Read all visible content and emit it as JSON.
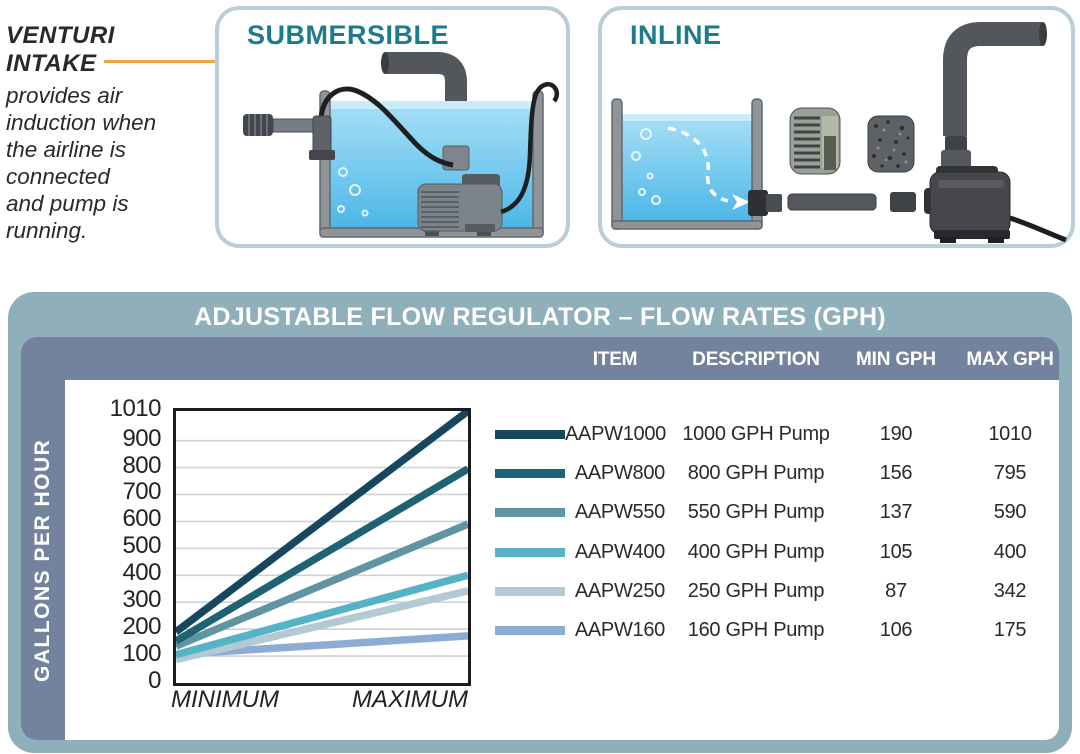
{
  "annotation": {
    "title_lines": [
      "VENTURI",
      "INTAKE"
    ],
    "body_lines": [
      "provides air",
      "induction when",
      "the airline is",
      "connected",
      "and pump is",
      "running."
    ],
    "callout_color": "#efa73e"
  },
  "panels": {
    "submersible": {
      "title": "SUBMERSIBLE"
    },
    "inline": {
      "title": "INLINE"
    },
    "title_color": "#1d7b8c",
    "border_color": "#b9ced7"
  },
  "flow_card": {
    "title": "ADJUSTABLE FLOW REGULATOR – FLOW RATES (GPH)",
    "outer_color": "#8fb0ba",
    "inner_color": "#74839d",
    "columns": [
      "ITEM CODE",
      "DESCRIPTION",
      "MIN GPH",
      "MAX GPH"
    ],
    "rows": [
      {
        "code": "AAPW1000",
        "description": "1000 GPH Pump",
        "min": "190",
        "max": "1010"
      },
      {
        "code": "AAPW800",
        "description": "800 GPH Pump",
        "min": "156",
        "max": "795"
      },
      {
        "code": "AAPW550",
        "description": "550 GPH Pump",
        "min": "137",
        "max": "590"
      },
      {
        "code": "AAPW400",
        "description": "400 GPH Pump",
        "min": "105",
        "max": "400"
      },
      {
        "code": "AAPW250",
        "description": "250 GPH Pump",
        "min": "87",
        "max": "342"
      },
      {
        "code": "AAPW160",
        "description": "160 GPH Pump",
        "min": "106",
        "max": "175"
      }
    ]
  },
  "chart_data": {
    "type": "line",
    "title": "ADJUSTABLE FLOW REGULATOR – FLOW RATES (GPH)",
    "ylabel": "GALLONS PER HOUR",
    "x": [
      "MINIMUM",
      "MAXIMUM"
    ],
    "ylim": [
      0,
      1010
    ],
    "yticks": [
      1010,
      900,
      800,
      700,
      600,
      500,
      400,
      300,
      200,
      100,
      0
    ],
    "grid": true,
    "legend_position": "right-table",
    "series": [
      {
        "name": "AAPW1000",
        "values": [
          190,
          1010
        ],
        "color": "#17465f"
      },
      {
        "name": "AAPW800",
        "values": [
          156,
          795
        ],
        "color": "#1e6373"
      },
      {
        "name": "AAPW550",
        "values": [
          137,
          590
        ],
        "color": "#5f95a1"
      },
      {
        "name": "AAPW400",
        "values": [
          105,
          400
        ],
        "color": "#55b3c5"
      },
      {
        "name": "AAPW250",
        "values": [
          87,
          342
        ],
        "color": "#b3c9d3"
      },
      {
        "name": "AAPW160",
        "values": [
          106,
          175
        ],
        "color": "#8cacd3"
      }
    ]
  }
}
